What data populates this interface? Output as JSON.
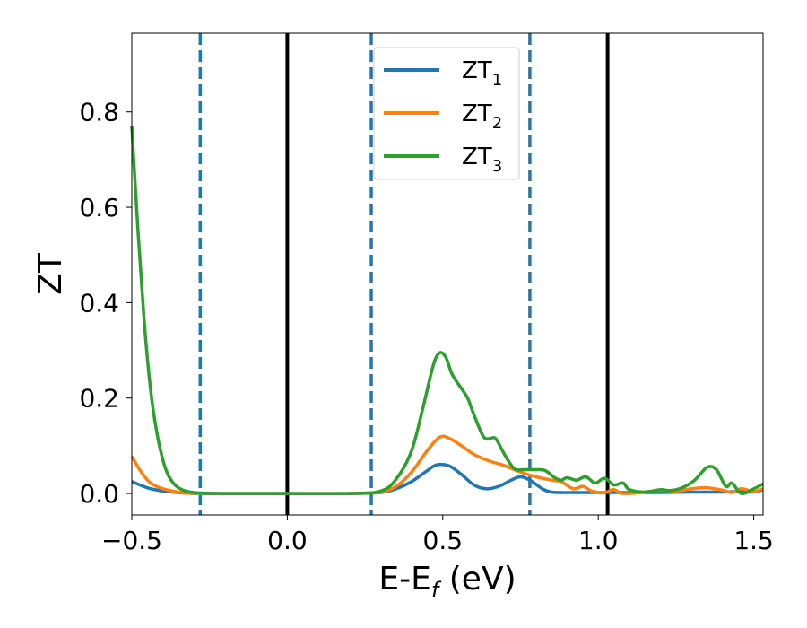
{
  "chart_data": {
    "type": "line",
    "xlabel": "E-E",
    "xlabel_sub": "f",
    "xlabel_unit": " (eV)",
    "ylabel": "ZT",
    "xlim": [
      -0.5,
      1.53
    ],
    "ylim": [
      -0.045,
      0.965
    ],
    "xticks": [
      -0.5,
      0.0,
      0.5,
      1.0,
      1.5
    ],
    "xtick_labels": [
      "−0.5",
      "0.0",
      "0.5",
      "1.0",
      "1.5"
    ],
    "yticks": [
      0.0,
      0.2,
      0.4,
      0.6,
      0.8
    ],
    "ytick_labels": [
      "0.0",
      "0.2",
      "0.4",
      "0.6",
      "0.8"
    ],
    "grid": false,
    "legend_position": "top-center",
    "vertical_lines": [
      {
        "x": -0.28,
        "style": "dashed",
        "color": "#1f77b4"
      },
      {
        "x": 0.0,
        "style": "solid",
        "color": "#000000"
      },
      {
        "x": 0.27,
        "style": "dashed",
        "color": "#1f77b4"
      },
      {
        "x": 0.78,
        "style": "dashed",
        "color": "#1f77b4"
      },
      {
        "x": 1.03,
        "style": "solid",
        "color": "#000000"
      }
    ],
    "series": [
      {
        "name": "ZT",
        "name_sub": "1",
        "color": "#1f77b4",
        "points": [
          [
            -0.5,
            0.025
          ],
          [
            -0.45,
            0.012
          ],
          [
            -0.4,
            0.005
          ],
          [
            -0.35,
            0.002
          ],
          [
            -0.3,
            0.0
          ],
          [
            -0.2,
            0.0
          ],
          [
            0.0,
            0.0
          ],
          [
            0.2,
            0.0
          ],
          [
            0.3,
            0.002
          ],
          [
            0.35,
            0.01
          ],
          [
            0.4,
            0.025
          ],
          [
            0.45,
            0.048
          ],
          [
            0.48,
            0.06
          ],
          [
            0.52,
            0.058
          ],
          [
            0.56,
            0.04
          ],
          [
            0.6,
            0.018
          ],
          [
            0.64,
            0.01
          ],
          [
            0.68,
            0.015
          ],
          [
            0.72,
            0.028
          ],
          [
            0.75,
            0.035
          ],
          [
            0.78,
            0.028
          ],
          [
            0.82,
            0.01
          ],
          [
            0.85,
            0.003
          ],
          [
            0.9,
            0.002
          ],
          [
            1.0,
            0.002
          ],
          [
            1.1,
            0.002
          ],
          [
            1.2,
            0.002
          ],
          [
            1.3,
            0.003
          ],
          [
            1.4,
            0.003
          ],
          [
            1.45,
            0.004
          ],
          [
            1.5,
            0.003
          ],
          [
            1.53,
            0.008
          ]
        ]
      },
      {
        "name": "ZT",
        "name_sub": "2",
        "color": "#ff7f0e",
        "points": [
          [
            -0.5,
            0.078
          ],
          [
            -0.47,
            0.045
          ],
          [
            -0.44,
            0.022
          ],
          [
            -0.4,
            0.01
          ],
          [
            -0.35,
            0.003
          ],
          [
            -0.3,
            0.0
          ],
          [
            -0.2,
            0.0
          ],
          [
            0.0,
            0.0
          ],
          [
            0.2,
            0.0
          ],
          [
            0.3,
            0.003
          ],
          [
            0.35,
            0.015
          ],
          [
            0.4,
            0.045
          ],
          [
            0.45,
            0.09
          ],
          [
            0.49,
            0.118
          ],
          [
            0.52,
            0.116
          ],
          [
            0.56,
            0.1
          ],
          [
            0.6,
            0.082
          ],
          [
            0.65,
            0.068
          ],
          [
            0.7,
            0.058
          ],
          [
            0.75,
            0.045
          ],
          [
            0.8,
            0.035
          ],
          [
            0.85,
            0.028
          ],
          [
            0.88,
            0.025
          ],
          [
            0.92,
            0.01
          ],
          [
            0.95,
            0.015
          ],
          [
            0.98,
            0.005
          ],
          [
            1.02,
            0.002
          ],
          [
            1.05,
            0.008
          ],
          [
            1.08,
            0.0
          ],
          [
            1.15,
            0.003
          ],
          [
            1.2,
            0.007
          ],
          [
            1.25,
            0.005
          ],
          [
            1.3,
            0.01
          ],
          [
            1.35,
            0.012
          ],
          [
            1.4,
            0.007
          ],
          [
            1.43,
            0.002
          ],
          [
            1.46,
            0.01
          ],
          [
            1.5,
            0.004
          ],
          [
            1.53,
            0.01
          ]
        ]
      },
      {
        "name": "ZT",
        "name_sub": "3",
        "color": "#2ca02c",
        "points": [
          [
            -0.5,
            0.77
          ],
          [
            -0.48,
            0.55
          ],
          [
            -0.46,
            0.36
          ],
          [
            -0.44,
            0.22
          ],
          [
            -0.42,
            0.13
          ],
          [
            -0.4,
            0.07
          ],
          [
            -0.38,
            0.035
          ],
          [
            -0.35,
            0.012
          ],
          [
            -0.3,
            0.002
          ],
          [
            -0.2,
            0.0
          ],
          [
            0.0,
            0.0
          ],
          [
            0.2,
            0.0
          ],
          [
            0.3,
            0.005
          ],
          [
            0.35,
            0.03
          ],
          [
            0.4,
            0.09
          ],
          [
            0.44,
            0.19
          ],
          [
            0.47,
            0.27
          ],
          [
            0.49,
            0.295
          ],
          [
            0.51,
            0.285
          ],
          [
            0.53,
            0.25
          ],
          [
            0.56,
            0.22
          ],
          [
            0.58,
            0.2
          ],
          [
            0.6,
            0.165
          ],
          [
            0.63,
            0.12
          ],
          [
            0.65,
            0.115
          ],
          [
            0.67,
            0.115
          ],
          [
            0.7,
            0.08
          ],
          [
            0.73,
            0.052
          ],
          [
            0.76,
            0.05
          ],
          [
            0.8,
            0.05
          ],
          [
            0.83,
            0.048
          ],
          [
            0.86,
            0.033
          ],
          [
            0.88,
            0.028
          ],
          [
            0.9,
            0.033
          ],
          [
            0.93,
            0.028
          ],
          [
            0.96,
            0.035
          ],
          [
            0.99,
            0.022
          ],
          [
            1.02,
            0.032
          ],
          [
            1.05,
            0.018
          ],
          [
            1.08,
            0.022
          ],
          [
            1.1,
            0.008
          ],
          [
            1.15,
            0.003
          ],
          [
            1.2,
            0.008
          ],
          [
            1.23,
            0.006
          ],
          [
            1.27,
            0.012
          ],
          [
            1.31,
            0.028
          ],
          [
            1.35,
            0.055
          ],
          [
            1.38,
            0.05
          ],
          [
            1.41,
            0.015
          ],
          [
            1.43,
            0.022
          ],
          [
            1.46,
            0.0
          ],
          [
            1.5,
            0.01
          ],
          [
            1.53,
            0.02
          ]
        ]
      }
    ]
  }
}
